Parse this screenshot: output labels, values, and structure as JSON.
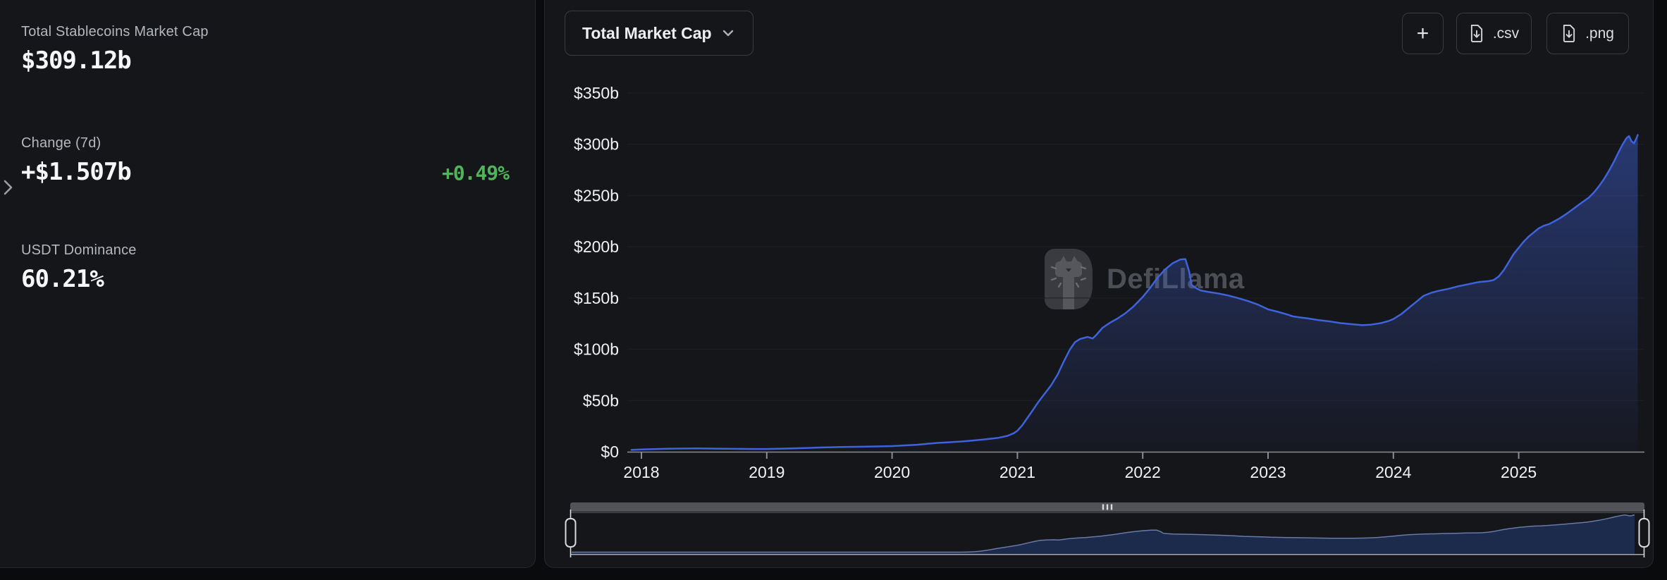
{
  "stats": {
    "market_cap": {
      "label": "Total Stablecoins Market Cap",
      "value": "$309.12b"
    },
    "change_7d": {
      "label": "Change (7d)",
      "value": "+$1.507b",
      "percent": "+0.49%"
    },
    "usdt_dominance": {
      "label": "USDT Dominance",
      "value": "60.21%"
    }
  },
  "toolbar": {
    "metric_selector": "Total Market Cap",
    "add_button": "+",
    "csv_button": ".csv",
    "png_button": ".png"
  },
  "watermark": {
    "text": "DefiLlama"
  },
  "icons": {
    "metric_selector": "chevron-down-icon",
    "export_buttons": "file-download-icon",
    "change_row": "expand-chevron-icon",
    "navigator_bar": "drag-grip-icon"
  },
  "colors": {
    "page_bg": "#0a0b0d",
    "card_bg": "#15161a",
    "card_border": "#26272c",
    "label_gray": "#b4b7bd",
    "value_white": "#f6f7f9",
    "positive_green": "#50b45a",
    "line_blue": "#3e63dc",
    "area_top": "rgba(64,100,224,0.50)",
    "area_bottom": "rgba(64,100,224,0.03)",
    "grid": "#1e2024",
    "axis": "#8a8c92",
    "nav_fill": "#1c2a4b",
    "nav_line": "#687aa6",
    "nav_bar": "#515359",
    "nav_handle": "#d9dadd",
    "watermark_gray": "#4c4f56"
  },
  "chart_data": {
    "type": "area",
    "title": "Total Market Cap",
    "xlabel": "",
    "ylabel": "",
    "legend": false,
    "grid": true,
    "ylim": [
      0,
      350
    ],
    "xlim": [
      2017.92,
      2026.02
    ],
    "x_ticks": {
      "values": [
        2018,
        2019,
        2020,
        2021,
        2022,
        2023,
        2024,
        2025
      ],
      "labels": [
        "2018",
        "2019",
        "2020",
        "2021",
        "2022",
        "2023",
        "2024",
        "2025"
      ]
    },
    "y_ticks": {
      "values": [
        0,
        50,
        100,
        150,
        200,
        250,
        300,
        350
      ],
      "labels": [
        "$0",
        "$50b",
        "$100b",
        "$150b",
        "$200b",
        "$250b",
        "$300b",
        "$350b"
      ]
    },
    "series_name": "Total Stablecoins Market Cap ($b)",
    "x": [
      2017.92,
      2018.0,
      2018.1,
      2018.2,
      2018.3,
      2018.45,
      2018.6,
      2018.75,
      2018.9,
      2019.0,
      2019.15,
      2019.3,
      2019.45,
      2019.6,
      2019.75,
      2019.9,
      2020.0,
      2020.1,
      2020.2,
      2020.28,
      2020.36,
      2020.45,
      2020.55,
      2020.65,
      2020.75,
      2020.85,
      2020.92,
      2020.97,
      2021.0,
      2021.04,
      2021.08,
      2021.12,
      2021.17,
      2021.22,
      2021.27,
      2021.32,
      2021.37,
      2021.42,
      2021.46,
      2021.5,
      2021.56,
      2021.6,
      2021.63,
      2021.68,
      2021.74,
      2021.8,
      2021.86,
      2021.92,
      2021.96,
      2022.0,
      2022.06,
      2022.12,
      2022.18,
      2022.24,
      2022.3,
      2022.34,
      2022.37,
      2022.39,
      2022.42,
      2022.46,
      2022.52,
      2022.6,
      2022.68,
      2022.76,
      2022.84,
      2022.92,
      2023.0,
      2023.08,
      2023.15,
      2023.2,
      2023.26,
      2023.32,
      2023.4,
      2023.5,
      2023.58,
      2023.66,
      2023.75,
      2023.82,
      2023.9,
      2023.96,
      2024.0,
      2024.06,
      2024.12,
      2024.18,
      2024.24,
      2024.3,
      2024.36,
      2024.44,
      2024.52,
      2024.6,
      2024.68,
      2024.76,
      2024.8,
      2024.84,
      2024.88,
      2024.92,
      2024.96,
      2025.0,
      2025.04,
      2025.08,
      2025.12,
      2025.16,
      2025.2,
      2025.24,
      2025.28,
      2025.33,
      2025.38,
      2025.43,
      2025.48,
      2025.52,
      2025.56,
      2025.6,
      2025.64,
      2025.68,
      2025.72,
      2025.76,
      2025.8,
      2025.83,
      2025.86,
      2025.88,
      2025.9,
      2025.92,
      2025.94,
      2025.95
    ],
    "values": [
      1.8,
      2.3,
      2.6,
      2.9,
      3.1,
      3.2,
      3.0,
      2.8,
      2.7,
      2.7,
      3.1,
      3.6,
      4.2,
      4.6,
      4.9,
      5.2,
      5.5,
      6.2,
      6.8,
      7.8,
      8.6,
      9.2,
      10.0,
      11.0,
      12.2,
      13.6,
      15.5,
      18.0,
      20.5,
      26,
      33,
      40,
      49,
      57,
      65,
      75,
      88,
      100,
      107,
      110,
      112,
      110.5,
      114,
      121,
      126,
      130,
      135,
      141,
      146,
      151,
      160,
      170,
      178,
      184,
      187.5,
      188,
      176,
      163,
      160,
      157.5,
      156,
      154.5,
      152.5,
      150,
      147,
      143.5,
      139,
      136.5,
      134,
      132,
      131,
      130,
      128.5,
      127,
      125.5,
      124.5,
      123.5,
      124,
      125.5,
      127.5,
      129.5,
      134,
      140,
      146,
      152,
      155,
      157,
      159,
      161.5,
      163.5,
      165.5,
      166.5,
      167.5,
      171,
      177,
      185,
      193,
      199,
      205,
      210,
      214,
      218,
      220.5,
      222,
      224.5,
      228,
      232,
      236.5,
      241,
      244.5,
      248,
      253,
      259,
      266,
      274,
      283,
      293,
      300,
      306,
      308,
      303,
      301,
      306,
      309.12
    ]
  }
}
